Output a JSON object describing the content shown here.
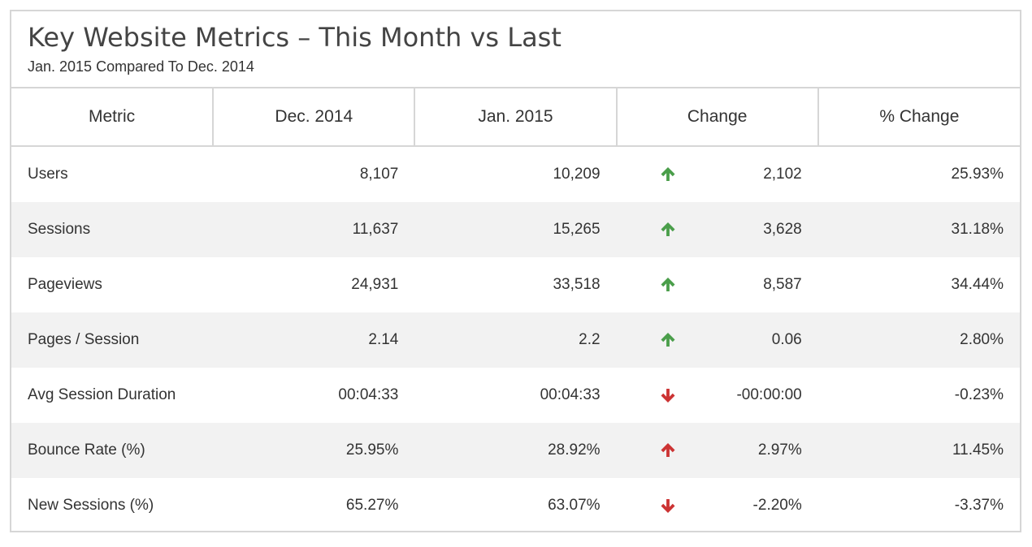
{
  "header": {
    "title": "Key Website Metrics – This Month vs Last",
    "subtitle_start": "Jan. 2015",
    "subtitle_mid": "Compared To",
    "subtitle_end": "Dec. 2014"
  },
  "colors": {
    "up_good": "#4a9e4a",
    "down_bad": "#cc3333",
    "up_bad": "#cc3333",
    "row_alt": "#f2f2f2",
    "border": "#d6d6d6"
  },
  "chart_data": {
    "type": "table",
    "title": "Key Website Metrics – This Month vs Last",
    "subtitle": "Jan. 2015 Compared To Dec. 2014",
    "columns": [
      "Metric",
      "Dec. 2014",
      "Jan. 2015",
      "Change",
      "% Change"
    ],
    "rows": [
      {
        "metric": "Users",
        "prev": "8,107",
        "curr": "10,209",
        "change": "2,102",
        "pct": "25.93%",
        "direction": "up",
        "arrow_color": "green",
        "arrow_icon": "arrow-up-icon"
      },
      {
        "metric": "Sessions",
        "prev": "11,637",
        "curr": "15,265",
        "change": "3,628",
        "pct": "31.18%",
        "direction": "up",
        "arrow_color": "green",
        "arrow_icon": "arrow-up-icon"
      },
      {
        "metric": "Pageviews",
        "prev": "24,931",
        "curr": "33,518",
        "change": "8,587",
        "pct": "34.44%",
        "direction": "up",
        "arrow_color": "green",
        "arrow_icon": "arrow-up-icon"
      },
      {
        "metric": "Pages / Session",
        "prev": "2.14",
        "curr": "2.2",
        "change": "0.06",
        "pct": "2.80%",
        "direction": "up",
        "arrow_color": "green",
        "arrow_icon": "arrow-up-icon"
      },
      {
        "metric": "Avg Session Duration",
        "prev": "00:04:33",
        "curr": "00:04:33",
        "change": "-00:00:00",
        "pct": "-0.23%",
        "direction": "down",
        "arrow_color": "red",
        "arrow_icon": "arrow-down-icon"
      },
      {
        "metric": "Bounce Rate (%)",
        "prev": "25.95%",
        "curr": "28.92%",
        "change": "2.97%",
        "pct": "11.45%",
        "direction": "up",
        "arrow_color": "red",
        "arrow_icon": "arrow-up-icon"
      },
      {
        "metric": "New Sessions (%)",
        "prev": "65.27%",
        "curr": "63.07%",
        "change": "-2.20%",
        "pct": "-3.37%",
        "direction": "down",
        "arrow_color": "red",
        "arrow_icon": "arrow-down-icon"
      }
    ]
  }
}
